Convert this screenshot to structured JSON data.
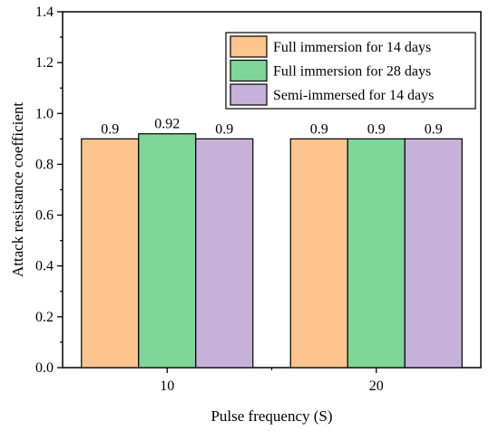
{
  "chart_data": {
    "type": "bar",
    "categories": [
      "10",
      "20"
    ],
    "series": [
      {
        "name": "Full immersion for 14 days",
        "values": [
          0.9,
          0.9
        ],
        "labels": [
          "0.9",
          "0.9"
        ],
        "color": "#FDC48E"
      },
      {
        "name": "Full immersion for 28 days",
        "values": [
          0.92,
          0.9
        ],
        "labels": [
          "0.92",
          "0.9"
        ],
        "color": "#7FD699"
      },
      {
        "name": "Semi-immersed for 14 days",
        "values": [
          0.9,
          0.9
        ],
        "labels": [
          "0.9",
          "0.9"
        ],
        "color": "#C8B1D9"
      }
    ],
    "title": "",
    "xlabel": "Pulse frequency (S)",
    "ylabel": "Attack resistance coefficient",
    "ylim": [
      0,
      1.4
    ],
    "yticks": [
      "0.0",
      "0.2",
      "0.4",
      "0.6",
      "0.8",
      "1.0",
      "1.2",
      "1.4"
    ],
    "grid": false,
    "legend_position": "top-right"
  }
}
